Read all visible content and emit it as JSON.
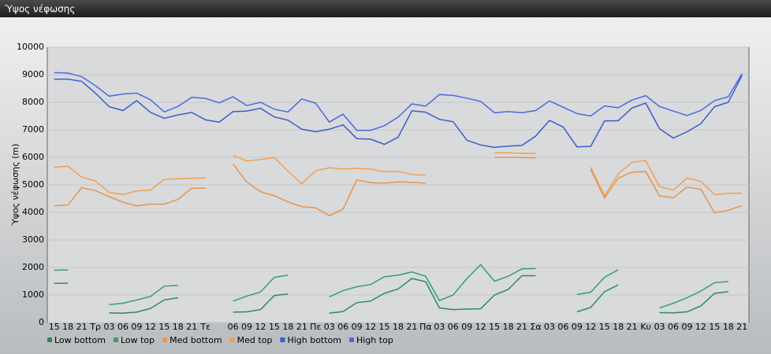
{
  "chart_data": {
    "type": "line",
    "title": "Ύψος νέφωσης",
    "y_label": "Ύψος νέφωσης (m)",
    "categories": [
      "15",
      "18",
      "21",
      "Τρ",
      "03",
      "06",
      "09",
      "12",
      "15",
      "18",
      "21",
      "Τε",
      null,
      "06",
      "09",
      "12",
      "15",
      "18",
      "21",
      "Πε",
      "03",
      "06",
      "09",
      "12",
      "15",
      "18",
      "21",
      "Πα",
      "03",
      "06",
      "09",
      "12",
      "15",
      "18",
      "21",
      "Σα",
      "03",
      "06",
      "09",
      "12",
      "15",
      "18",
      "21",
      "Κυ",
      "03",
      "06",
      "09",
      "12",
      "15",
      "18",
      "21"
    ],
    "ylim": [
      0,
      10000
    ],
    "yticks": [
      0,
      1000,
      2000,
      3000,
      4000,
      5000,
      6000,
      7000,
      8000,
      9000,
      10000
    ],
    "grid": true,
    "legend": "bottom",
    "series": [
      {
        "name": "Low bottom",
        "color": "#2e8b57",
        "values": [
          1420,
          1430,
          null,
          null,
          350,
          340,
          380,
          510,
          820,
          900,
          null,
          null,
          null,
          380,
          390,
          470,
          980,
          1040,
          null,
          null,
          340,
          400,
          720,
          780,
          1060,
          1220,
          1600,
          1480,
          530,
          470,
          490,
          500,
          1000,
          1200,
          1700,
          1700,
          null,
          null,
          390,
          550,
          1120,
          1370,
          null,
          null,
          360,
          350,
          390,
          600,
          1060,
          1120,
          null
        ]
      },
      {
        "name": "Low top",
        "color": "#3a9e6a",
        "values": [
          1900,
          1910,
          null,
          null,
          650,
          700,
          820,
          950,
          1320,
          1350,
          null,
          null,
          null,
          780,
          960,
          1110,
          1640,
          1720,
          null,
          null,
          930,
          1160,
          1300,
          1380,
          1660,
          1720,
          1840,
          1680,
          800,
          1000,
          1600,
          2100,
          1500,
          1680,
          1950,
          1960,
          null,
          null,
          1020,
          1100,
          1640,
          1920,
          null,
          null,
          530,
          700,
          900,
          1140,
          1450,
          1490,
          null
        ]
      },
      {
        "name": "Med bottom",
        "color": "#e8944a",
        "values": [
          4240,
          4270,
          4900,
          4790,
          4570,
          4370,
          4240,
          4300,
          4300,
          4470,
          4880,
          4880,
          null,
          5760,
          5100,
          4750,
          4610,
          4380,
          4210,
          4170,
          3880,
          4120,
          5180,
          5080,
          5060,
          5110,
          5090,
          5060,
          null,
          null,
          null,
          null,
          6000,
          6000,
          5990,
          5980,
          null,
          null,
          null,
          5560,
          4520,
          5250,
          5460,
          5480,
          4600,
          4530,
          4920,
          4840,
          3990,
          4080,
          4250
        ]
      },
      {
        "name": "Med top",
        "color": "#f0a050",
        "values": [
          5640,
          5680,
          5280,
          5140,
          4730,
          4650,
          4780,
          4810,
          5200,
          5220,
          5240,
          5250,
          null,
          6060,
          5870,
          5920,
          5990,
          5500,
          5040,
          5510,
          5620,
          5580,
          5600,
          5570,
          5480,
          5490,
          5380,
          5350,
          null,
          null,
          null,
          null,
          6160,
          6160,
          6150,
          6140,
          null,
          null,
          null,
          5640,
          4600,
          5400,
          5820,
          5880,
          4940,
          4810,
          5250,
          5130,
          4650,
          4690,
          4700
        ]
      },
      {
        "name": "High bottom",
        "color": "#3a5ccc",
        "values": [
          8840,
          8840,
          8760,
          8330,
          7840,
          7700,
          8060,
          7630,
          7420,
          7540,
          7630,
          7360,
          7280,
          7660,
          7680,
          7780,
          7470,
          7350,
          7020,
          6930,
          7020,
          7180,
          6680,
          6660,
          6470,
          6730,
          7690,
          7640,
          7380,
          7290,
          6620,
          6450,
          6360,
          6410,
          6430,
          6770,
          7340,
          7100,
          6380,
          6400,
          7320,
          7330,
          7790,
          7970,
          7040,
          6700,
          6930,
          7220,
          7840,
          8000,
          8980
        ]
      },
      {
        "name": "High top",
        "color": "#4a6be0",
        "values": [
          9080,
          9060,
          8930,
          8600,
          8220,
          8300,
          8330,
          8090,
          7650,
          7850,
          8180,
          8140,
          7980,
          8200,
          7880,
          8000,
          7750,
          7650,
          8120,
          7970,
          7280,
          7570,
          6980,
          6980,
          7150,
          7460,
          7940,
          7860,
          8280,
          8250,
          8150,
          8030,
          7620,
          7660,
          7620,
          7700,
          8050,
          7820,
          7590,
          7500,
          7870,
          7800,
          8080,
          8240,
          7850,
          7680,
          7520,
          7700,
          8060,
          8200,
          9040
        ]
      }
    ]
  }
}
